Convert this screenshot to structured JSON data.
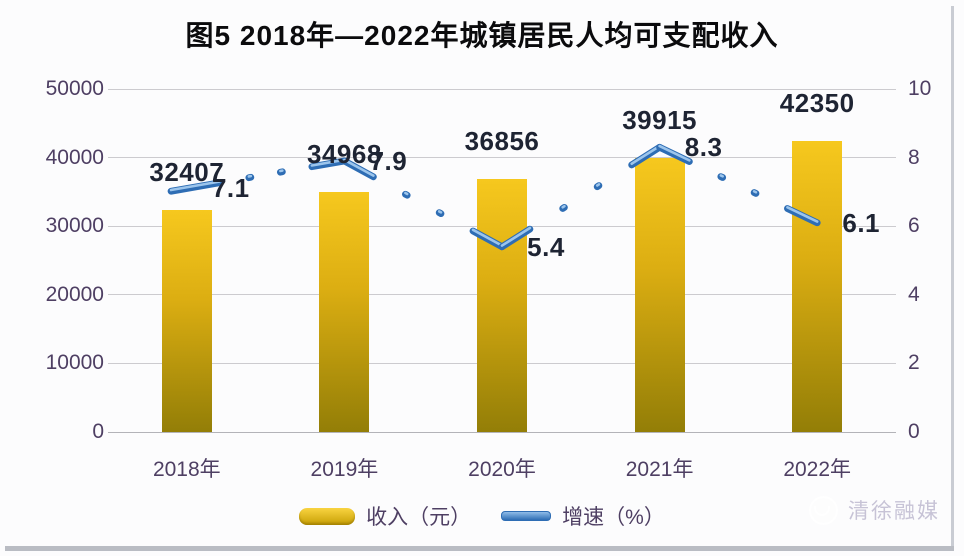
{
  "chart_data": {
    "type": "combo",
    "title": "图5  2018年—2022年城镇居民人均可支配收入",
    "categories": [
      "2018年",
      "2019年",
      "2020年",
      "2021年",
      "2022年"
    ],
    "series": [
      {
        "name": "收入（元）",
        "type": "bar",
        "axis": "left",
        "values": [
          32407,
          34968,
          36856,
          39915,
          42350
        ]
      },
      {
        "name": "增速（%）",
        "type": "line",
        "axis": "right",
        "values": [
          7.1,
          7.9,
          5.4,
          8.3,
          6.1
        ]
      }
    ],
    "left_axis": {
      "min": 0,
      "max": 50000,
      "step": 10000,
      "ticks": [
        "0",
        "10000",
        "20000",
        "30000",
        "40000",
        "50000"
      ]
    },
    "right_axis": {
      "min": 0,
      "max": 10,
      "step": 2,
      "ticks": [
        "0",
        "2",
        "4",
        "6",
        "8",
        "10"
      ]
    },
    "legend": {
      "position": "bottom",
      "items": [
        "收入（元）",
        "增速（%）"
      ]
    },
    "grid": "horizontal",
    "colors": {
      "bar_top": "#F6C81E",
      "bar_bottom": "#937E07",
      "line": "#2E6DB4",
      "line_highlight": "#9CC5EC",
      "dot": "#3C7BD0",
      "grid_line": "#CCCBCF",
      "axis_text": "#4E3F63",
      "value_text": "#1E2433",
      "title_text": "#0B0B0D"
    }
  },
  "watermark": {
    "text": "清徐融媒"
  }
}
